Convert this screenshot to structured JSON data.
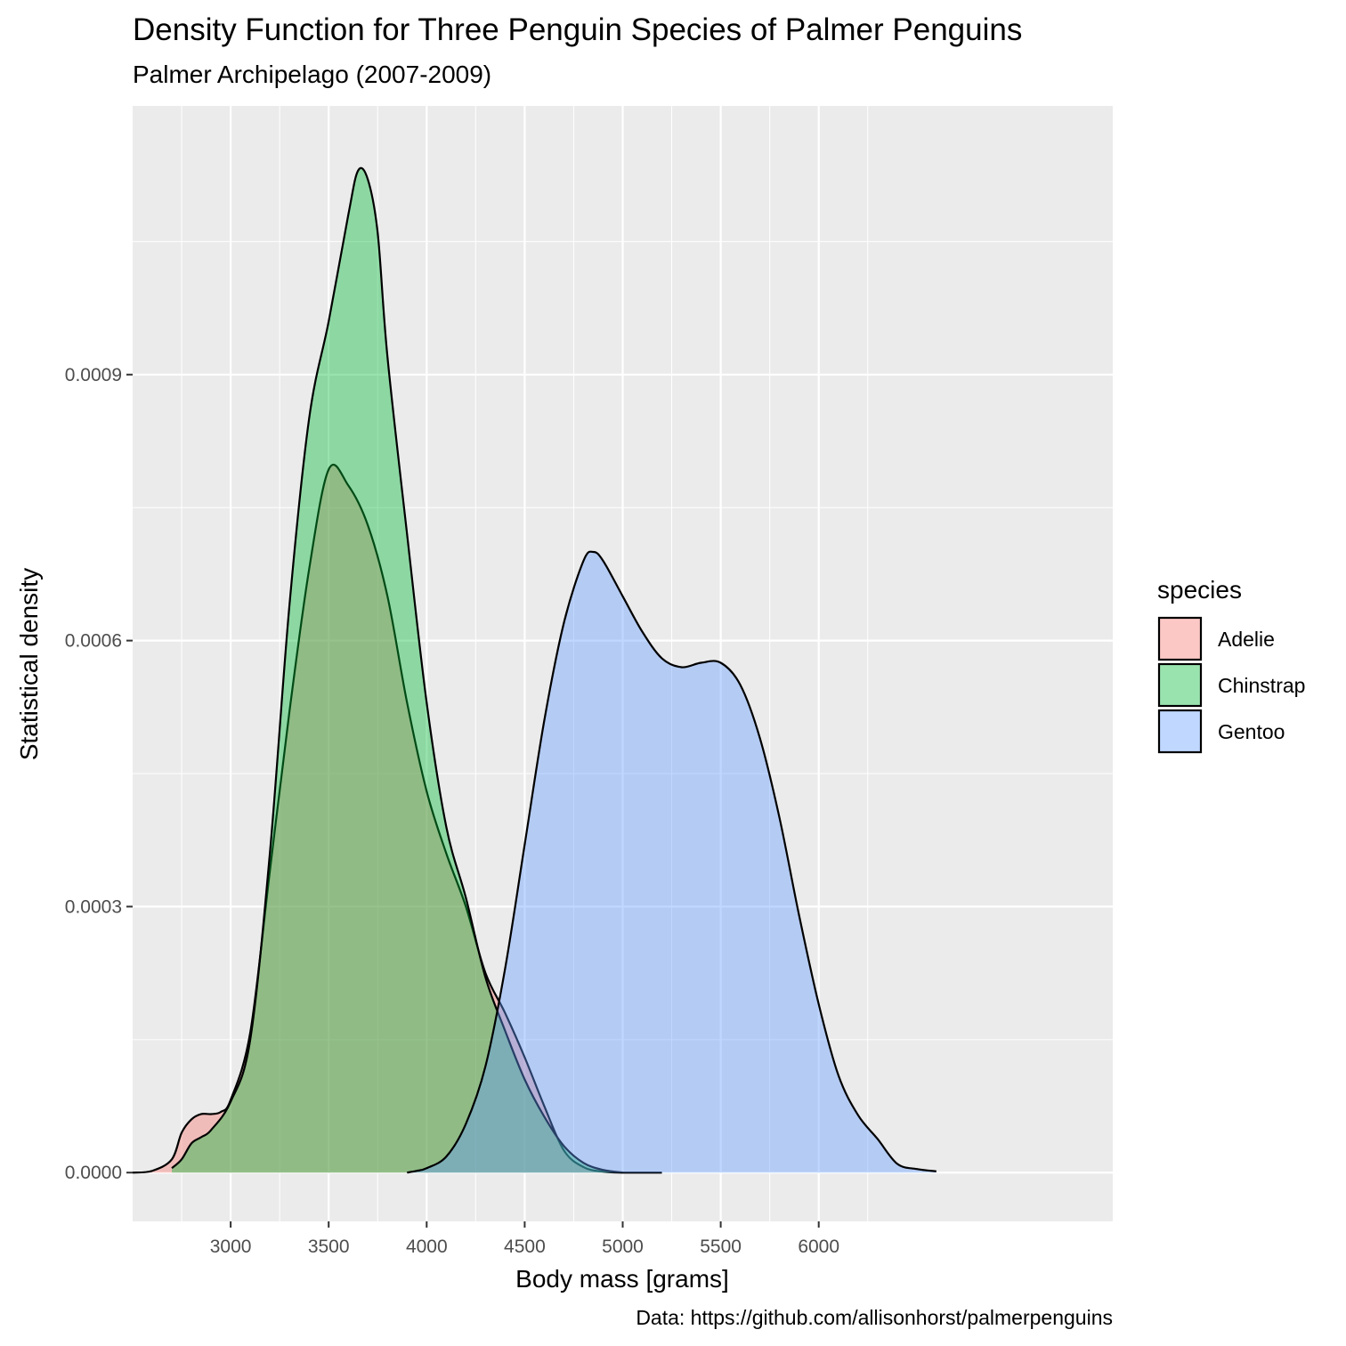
{
  "chart_data": {
    "type": "area",
    "subtype": "density",
    "title": "Density Function for Three Penguin Species of Palmer Penguins",
    "subtitle": "Palmer Archipelago (2007-2009)",
    "caption": "Data: https://github.com/allisonhorst/palmerpenguins",
    "xlabel": "Body mass [grams]",
    "ylabel": "Statistical density",
    "xlim": [
      2500,
      7500
    ],
    "ylim": [
      -5.5e-05,
      0.001203
    ],
    "x_ticks": [
      3000,
      3500,
      4000,
      4500,
      5000,
      5500,
      6000
    ],
    "x_tick_labels": [
      "3000",
      "3500",
      "4000",
      "4500",
      "5000",
      "5500",
      "6000"
    ],
    "y_ticks": [
      0.0,
      0.0003,
      0.0006,
      0.0009
    ],
    "y_tick_labels": [
      "0.0000",
      "0.0003",
      "0.0006",
      "0.0009"
    ],
    "grid": true,
    "fill_opacity": 0.4,
    "legend": {
      "title": "species",
      "position": "right",
      "entries": [
        "Adelie",
        "Chinstrap",
        "Gentoo"
      ]
    },
    "series": [
      {
        "name": "Adelie",
        "color": "#F8766D",
        "x": [
          2500,
          2600,
          2700,
          2750,
          2800,
          2850,
          2900,
          2950,
          3000,
          3100,
          3200,
          3300,
          3400,
          3500,
          3600,
          3700,
          3800,
          3900,
          4000,
          4100,
          4200,
          4300,
          4400,
          4500,
          4600,
          4700,
          4800,
          4900,
          5000,
          5100,
          5200
        ],
        "values": [
          0,
          2e-06,
          1.5e-05,
          4.5e-05,
          6e-05,
          6.6e-05,
          6.6e-05,
          6.85e-05,
          8.2e-05,
          0.000158,
          0.00034,
          0.00052,
          0.00068,
          0.000793,
          0.000775,
          0.00073,
          0.00065,
          0.00053,
          0.00043,
          0.00036,
          0.0003,
          0.000225,
          0.00018,
          0.00013,
          7.5e-05,
          2.5e-05,
          6.2e-06,
          1e-06,
          0,
          0,
          0
        ]
      },
      {
        "name": "Chinstrap",
        "color": "#00BA38",
        "x": [
          2700,
          2750,
          2800,
          2850,
          2900,
          3000,
          3100,
          3200,
          3300,
          3400,
          3500,
          3600,
          3650,
          3700,
          3750,
          3800,
          3900,
          4000,
          4100,
          4200,
          4300,
          4400,
          4500,
          4600,
          4700,
          4800,
          4900,
          5000
        ],
        "values": [
          5e-06,
          1.5e-05,
          3.3e-05,
          4e-05,
          4.8e-05,
          8e-05,
          0.00015,
          0.00036,
          0.00064,
          0.00085,
          0.00096,
          0.00108,
          0.00113,
          0.00112,
          0.00106,
          0.00092,
          0.00072,
          0.00053,
          0.00039,
          0.00031,
          0.00022,
          0.00016,
          0.000105,
          6.3e-05,
          3e-05,
          1.1e-05,
          3e-06,
          0
        ]
      },
      {
        "name": "Gentoo",
        "color": "#619CFF",
        "x": [
          3900,
          3950,
          4000,
          4100,
          4200,
          4300,
          4400,
          4500,
          4600,
          4700,
          4800,
          4850,
          4900,
          5000,
          5100,
          5200,
          5300,
          5400,
          5500,
          5600,
          5700,
          5800,
          5900,
          6000,
          6100,
          6200,
          6300,
          6400,
          6500,
          6600
        ],
        "values": [
          0,
          2e-06,
          5e-06,
          1.8e-05,
          5.5e-05,
          0.00012,
          0.00023,
          0.00037,
          0.00051,
          0.00062,
          0.00069,
          0.0007,
          0.00069,
          0.00065,
          0.00061,
          0.00058,
          0.00057,
          0.000575,
          0.000575,
          0.00055,
          0.00049,
          0.0004,
          0.00029,
          0.00019,
          0.00011,
          6.5e-05,
          3.8e-05,
          1e-05,
          4e-06,
          1.5e-06
        ]
      }
    ]
  }
}
